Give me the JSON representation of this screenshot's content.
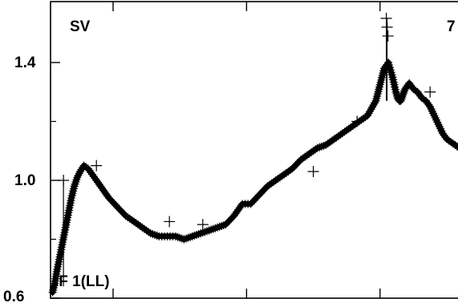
{
  "chart_data": {
    "type": "scatter",
    "title": "",
    "xlabel": "",
    "ylabel": "",
    "source_label": "SV",
    "corner_label": "7",
    "channel_label": "IF 1(LL)",
    "ylim": [
      0.6,
      1.6
    ],
    "yticks": [
      {
        "value": 0.6,
        "label": "0.6"
      },
      {
        "value": 1.0,
        "label": "1.0"
      },
      {
        "value": 1.4,
        "label": "1.4"
      }
    ],
    "xlim": [
      0,
      100
    ],
    "grid": false,
    "marker": "plus",
    "series": [
      {
        "x": [
          0.5,
          1.0,
          1.5,
          2.2,
          2.9,
          3.6,
          4.3,
          5.0,
          5.7,
          6.4,
          7.1,
          8.0,
          9.0,
          10.0,
          11.0,
          12.0,
          14.0,
          16.0,
          18.0,
          20.0,
          22.0,
          24.0,
          26.0,
          28.0,
          30.0,
          32.0,
          34.0,
          36.0,
          38.0,
          40.0,
          42.0,
          44.0,
          46.0,
          48.0,
          50.0,
          52.0,
          54.0,
          56.0,
          58.0,
          60.0,
          62.0,
          64.0,
          66.0,
          68.0,
          70.0,
          72.0,
          74.0,
          76.0,
          78.0,
          80.0,
          81.0,
          82.0,
          82.8,
          83.2,
          83.6,
          84.0,
          84.5,
          85.0,
          86.0,
          87.0,
          88.0,
          89.0,
          90.0,
          91.0,
          92.0,
          93.0,
          94.0,
          95.0,
          96.0,
          97.0,
          98.0,
          99.0,
          100.0
        ],
        "y": [
          0.62,
          0.65,
          0.69,
          0.74,
          0.79,
          0.84,
          0.89,
          0.94,
          0.98,
          1.01,
          1.03,
          1.05,
          1.04,
          1.02,
          1.0,
          0.98,
          0.94,
          0.91,
          0.88,
          0.86,
          0.84,
          0.82,
          0.81,
          0.81,
          0.81,
          0.8,
          0.81,
          0.82,
          0.83,
          0.84,
          0.85,
          0.88,
          0.92,
          0.92,
          0.95,
          0.98,
          1.0,
          1.02,
          1.04,
          1.07,
          1.09,
          1.11,
          1.12,
          1.14,
          1.16,
          1.18,
          1.2,
          1.22,
          1.27,
          1.38,
          1.4,
          1.35,
          1.3,
          1.28,
          1.27,
          1.27,
          1.29,
          1.31,
          1.33,
          1.31,
          1.3,
          1.28,
          1.27,
          1.25,
          1.22,
          1.19,
          1.16,
          1.14,
          1.13,
          1.12,
          1.11,
          1.1,
          1.1
        ]
      }
    ],
    "outliers": [
      {
        "x": 3.1,
        "y": 1.0
      },
      {
        "x": 11.0,
        "y": 1.05
      },
      {
        "x": 28.5,
        "y": 0.86
      },
      {
        "x": 36.5,
        "y": 0.85
      },
      {
        "x": 63.0,
        "y": 1.03
      },
      {
        "x": 73.5,
        "y": 1.2
      },
      {
        "x": 80.5,
        "y": 1.55
      },
      {
        "x": 80.7,
        "y": 1.52
      },
      {
        "x": 80.9,
        "y": 1.49
      },
      {
        "x": 91.0,
        "y": 1.3
      }
    ]
  }
}
